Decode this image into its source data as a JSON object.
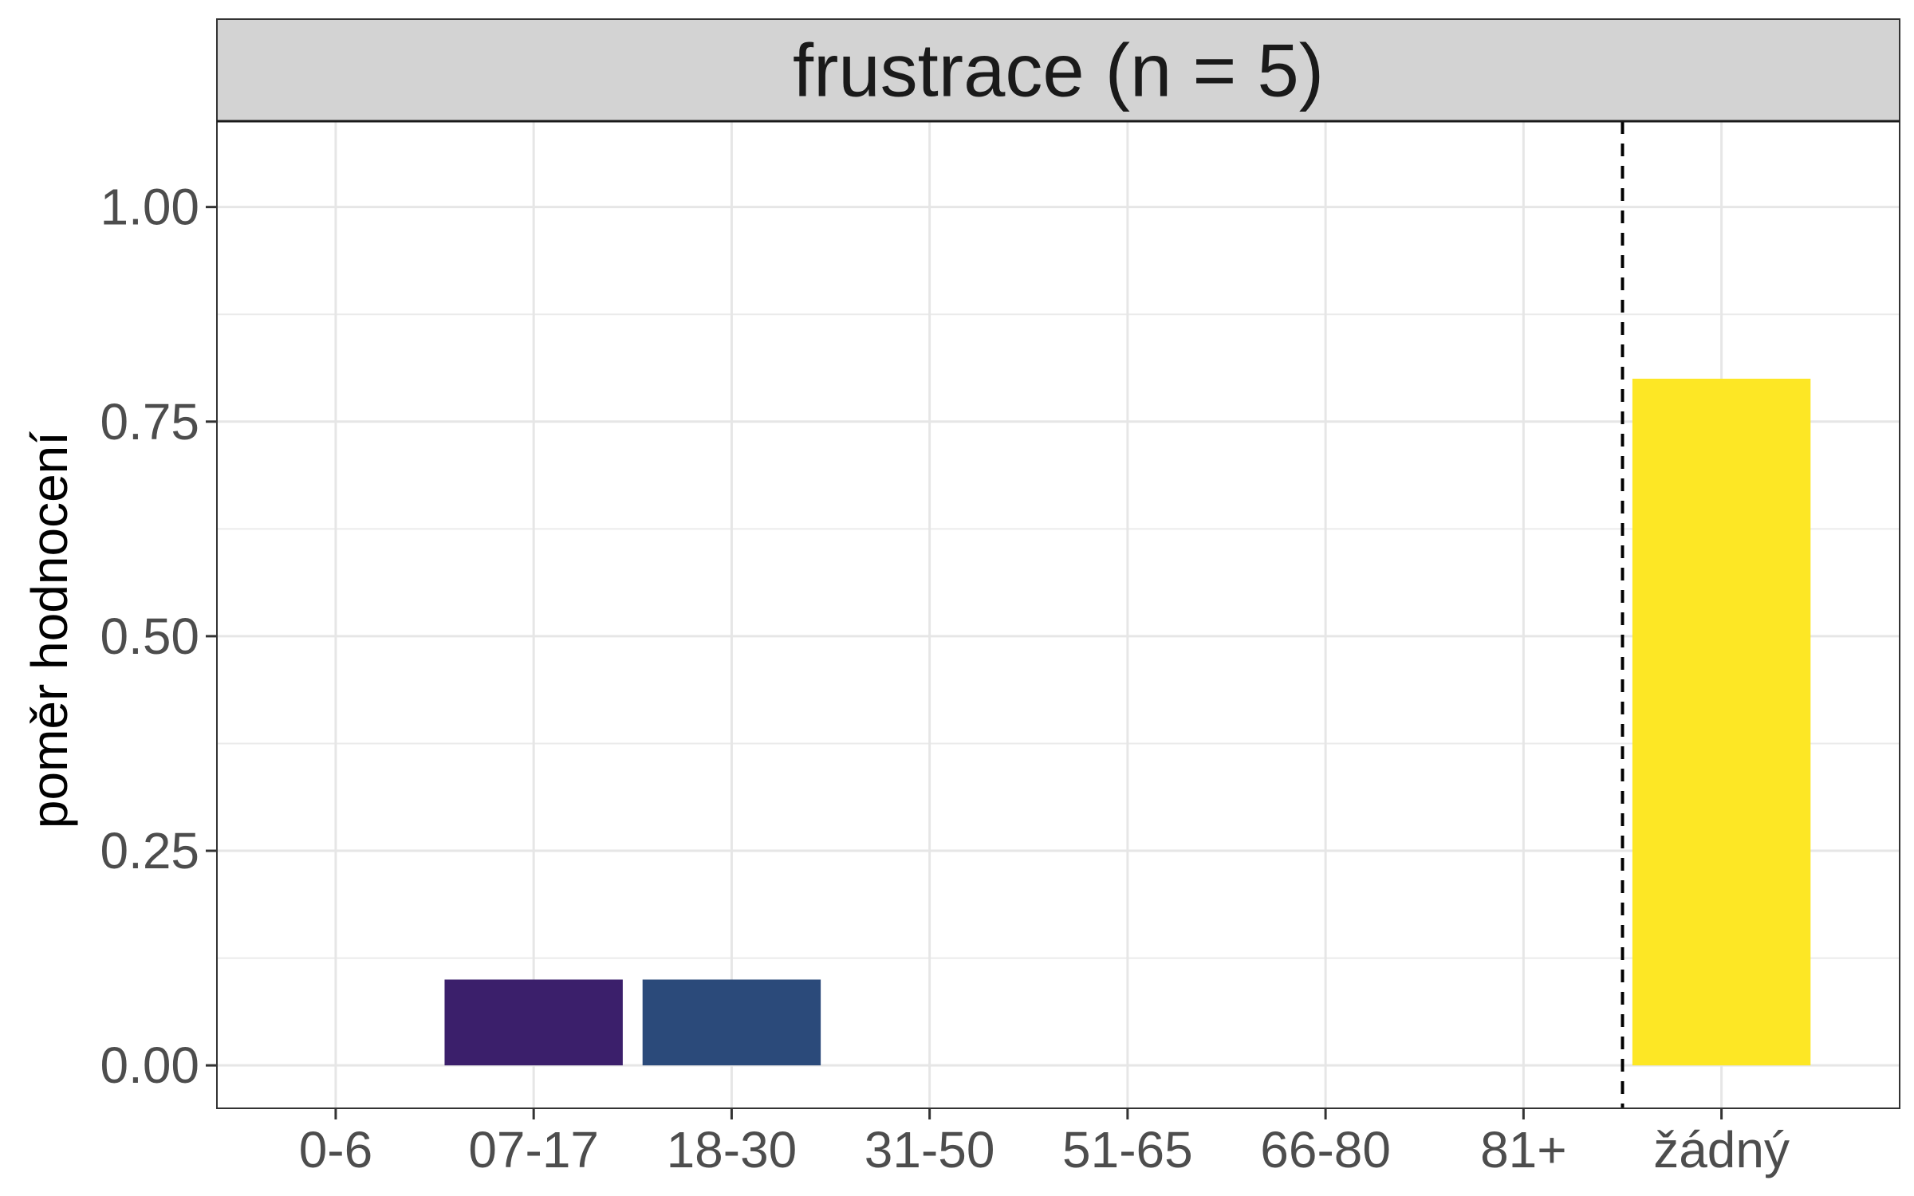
{
  "chart_data": {
    "type": "bar",
    "title": "frustrace (n = 5)",
    "xlabel": "",
    "ylabel": "poměr hodnocení",
    "categories": [
      "0-6",
      "07-17",
      "18-30",
      "31-50",
      "51-65",
      "66-80",
      "81+",
      "žádný"
    ],
    "values": [
      0,
      0.1,
      0.1,
      0,
      0,
      0,
      0,
      0.8
    ],
    "colors": [
      "#440154",
      "#3B1F6B",
      "#2B4A7A",
      "#21908C",
      "#35B779",
      "#6DCD59",
      "#B4DE2C",
      "#FDE725"
    ],
    "ylim": [
      -0.05,
      1.1
    ],
    "yticks": [
      0,
      0.25,
      0.5,
      0.75,
      1.0
    ],
    "ytick_labels": [
      "0.00",
      "0.25",
      "0.50",
      "0.75",
      "1.00"
    ],
    "reference_line": {
      "between": [
        "81+",
        "žádný"
      ],
      "style": "dashed"
    },
    "grid": true,
    "legend": "none"
  }
}
